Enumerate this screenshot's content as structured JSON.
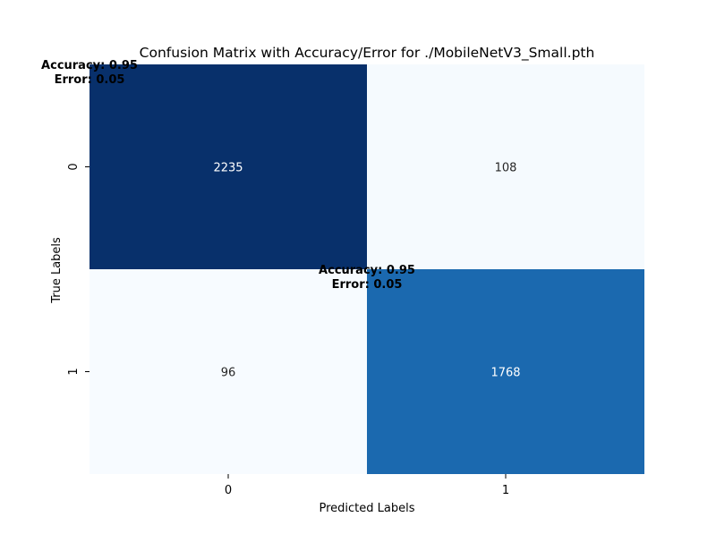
{
  "chart_data": {
    "type": "heatmap",
    "title": "Confusion Matrix with Accuracy/Error for ./MobileNetV3_Small.pth",
    "xlabel": "Predicted Labels",
    "ylabel": "True Labels",
    "x_categories": [
      "0",
      "1"
    ],
    "y_categories": [
      "0",
      "1"
    ],
    "matrix": [
      [
        2235,
        108
      ],
      [
        96,
        1768
      ]
    ],
    "colormap": "Blues",
    "color_range": [
      96,
      2235
    ],
    "colors": {
      "low": "#f7fbff",
      "mid": "#1b69b0",
      "high": "#08306b"
    },
    "annotations": [
      {
        "row": 0,
        "col": 0,
        "lines": [
          "Accuracy: 0.95",
          "Error: 0.05"
        ]
      },
      {
        "row": 1,
        "col": 1,
        "lines": [
          "Accuracy: 0.95",
          "Error: 0.05"
        ]
      }
    ]
  }
}
